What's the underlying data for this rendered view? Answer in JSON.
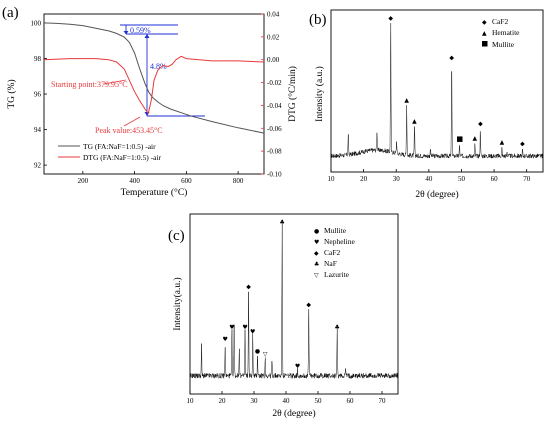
{
  "colors": {
    "tg": "#555555",
    "dtg": "#e8383b",
    "annotation": "#1f2fd6",
    "axis": "#000000"
  },
  "chart_data": [
    {
      "type": "line",
      "panel_label": "(a)",
      "xlabel": "Temperature (°C)",
      "ylabel": "TG (%)",
      "ylabel_right": "DTG (°C/min)",
      "xlim": [
        50,
        900
      ],
      "ylim": [
        91.5,
        100.5
      ],
      "ylim_right": [
        -0.1,
        0.04
      ],
      "x_ticks": [
        "200",
        "400",
        "600",
        "800"
      ],
      "y_ticks": [
        "92",
        "94",
        "96",
        "98",
        "100"
      ],
      "y_right_ticks": [
        "0.04",
        "0.02",
        "0.00",
        "-0.02",
        "-0.04",
        "-0.06",
        "-0.08",
        "-0.10"
      ],
      "legend": [
        "TG (FA:NaF=1:0.5) -air",
        "DTG (FA:NaF=1:0.5) -air"
      ],
      "annotations": [
        "0.59%",
        "4.8%",
        "Starting point:379.95°C",
        "Peak value:453.45°C"
      ],
      "series": [
        {
          "name": "TG (FA:NaF=1:0.5) -air",
          "axis": "left",
          "x": [
            50,
            100,
            150,
            200,
            250,
            300,
            330,
            360,
            380,
            400,
            420,
            440,
            455,
            470,
            490,
            510,
            540,
            580,
            620,
            700,
            800,
            900
          ],
          "y": [
            100,
            99.97,
            99.92,
            99.85,
            99.7,
            99.55,
            99.41,
            99.2,
            98.9,
            98.3,
            97.4,
            96.6,
            96.1,
            95.8,
            95.55,
            95.35,
            95.15,
            94.95,
            94.75,
            94.45,
            94.1,
            93.8
          ]
        },
        {
          "name": "DTG (FA:NaF=1:0.5) -air",
          "axis": "right",
          "x": [
            50,
            150,
            250,
            300,
            330,
            360,
            380,
            400,
            420,
            440,
            453,
            465,
            475,
            490,
            510,
            530,
            545,
            560,
            580,
            600,
            650,
            700,
            800,
            900
          ],
          "y": [
            0.0,
            0.001,
            0.001,
            0.0,
            -0.002,
            -0.008,
            -0.018,
            -0.028,
            -0.036,
            -0.043,
            -0.047,
            -0.035,
            -0.018,
            -0.009,
            -0.005,
            -0.006,
            -0.004,
            0.0,
            0.003,
            0.001,
            0.0,
            -0.001,
            -0.001,
            -0.002
          ]
        }
      ]
    },
    {
      "type": "line",
      "panel_label": "(b)",
      "xlabel": "2θ (degree)",
      "ylabel": "Intensity (a.u.)",
      "xlim": [
        10,
        75
      ],
      "x_ticks": [
        "10",
        "20",
        "30",
        "40",
        "50",
        "60",
        "70"
      ],
      "legend": [
        "CaF2",
        "Hematite",
        "Mullite"
      ],
      "peaks": [
        {
          "x": 15.3,
          "h": 0.17
        },
        {
          "x": 24.1,
          "h": 0.13
        },
        {
          "x": 28.3,
          "h": 1.0,
          "phase": "CaF2"
        },
        {
          "x": 30.1,
          "h": 0.09
        },
        {
          "x": 33.2,
          "h": 0.38,
          "phase": "Hematite"
        },
        {
          "x": 35.6,
          "h": 0.22,
          "phase": "Hematite"
        },
        {
          "x": 40.5,
          "h": 0.07
        },
        {
          "x": 47.0,
          "h": 0.7,
          "phase": "CaF2"
        },
        {
          "x": 49.4,
          "h": 0.08,
          "phase": "Mullite"
        },
        {
          "x": 54.1,
          "h": 0.09,
          "phase": "Hematite"
        },
        {
          "x": 55.8,
          "h": 0.2,
          "phase": "CaF2"
        },
        {
          "x": 62.4,
          "h": 0.06,
          "phase": "Hematite"
        },
        {
          "x": 64.0,
          "h": 0.04
        },
        {
          "x": 68.7,
          "h": 0.05,
          "phase": "CaF2"
        }
      ]
    },
    {
      "type": "line",
      "panel_label": "(c)",
      "xlabel": "2θ (degree)",
      "ylabel": "Intensity(a.u.)",
      "xlim": [
        10,
        75
      ],
      "x_ticks": [
        "10",
        "20",
        "30",
        "40",
        "50",
        "60",
        "70"
      ],
      "legend": [
        "Mullite",
        "Nepheline",
        "CaF2",
        "NaF",
        "Lazurite"
      ],
      "peaks": [
        {
          "x": 13.6,
          "h": 0.2
        },
        {
          "x": 21.0,
          "h": 0.22,
          "phase": "Nepheline"
        },
        {
          "x": 23.1,
          "h": 0.3,
          "phase": "Nepheline"
        },
        {
          "x": 23.8,
          "h": 0.38
        },
        {
          "x": 25.4,
          "h": 0.19
        },
        {
          "x": 27.2,
          "h": 0.3,
          "phase": "Nepheline"
        },
        {
          "x": 28.3,
          "h": 0.57,
          "phase": "CaF2"
        },
        {
          "x": 29.6,
          "h": 0.27,
          "phase": "Nepheline"
        },
        {
          "x": 31.1,
          "h": 0.14,
          "phase": "Mullite"
        },
        {
          "x": 33.5,
          "h": 0.12,
          "phase": "Lazurite"
        },
        {
          "x": 35.6,
          "h": 0.1
        },
        {
          "x": 38.8,
          "h": 1.0,
          "phase": "NaF"
        },
        {
          "x": 43.6,
          "h": 0.04,
          "phase": "Nepheline"
        },
        {
          "x": 47.1,
          "h": 0.45,
          "phase": "CaF2"
        },
        {
          "x": 56.0,
          "h": 0.3,
          "phase": "NaF"
        },
        {
          "x": 58.6,
          "h": 0.05
        }
      ]
    }
  ]
}
